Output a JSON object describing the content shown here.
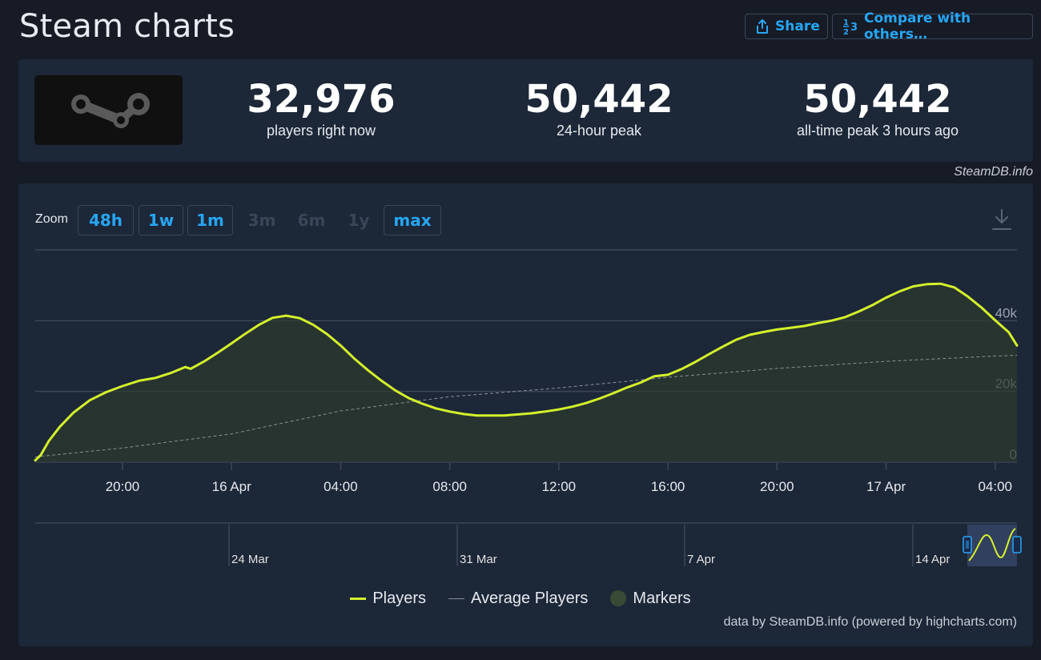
{
  "header": {
    "title": "Steam charts",
    "share_label": "Share",
    "compare_label": "Compare with others…"
  },
  "stats": [
    {
      "value": "32,976",
      "label": "players right now"
    },
    {
      "value": "50,442",
      "label": "24-hour peak"
    },
    {
      "value": "50,442",
      "label": "all-time peak 3 hours ago"
    }
  ],
  "credit_top": "SteamDB.info",
  "zoom": {
    "label": "Zoom",
    "buttons": [
      {
        "label": "48h",
        "enabled": true
      },
      {
        "label": "1w",
        "enabled": true
      },
      {
        "label": "1m",
        "enabled": true
      },
      {
        "label": "3m",
        "enabled": false
      },
      {
        "label": "6m",
        "enabled": false
      },
      {
        "label": "1y",
        "enabled": false
      },
      {
        "label": "max",
        "enabled": true
      }
    ]
  },
  "legend": {
    "players": "Players",
    "average": "Average Players",
    "markers": "Markers"
  },
  "footer_credit": "data by SteamDB.info (powered by highcharts.com)",
  "colors": {
    "players": "#d4f22b",
    "average": "#8a8f99",
    "markers": "#394a35",
    "accent": "#27a6f5"
  },
  "chart_data": {
    "type": "line",
    "x_unit": "hours since 15 Apr 16:00",
    "x_tick_labels": [
      "20:00",
      "16 Apr",
      "04:00",
      "08:00",
      "12:00",
      "16:00",
      "20:00",
      "17 Apr",
      "04:00"
    ],
    "x_tick_values": [
      4,
      8,
      12,
      16,
      20,
      24,
      28,
      32,
      36
    ],
    "xlim": [
      0.8,
      36.8
    ],
    "y_tick_labels": [
      "0",
      "20k",
      "40k"
    ],
    "y_tick_values": [
      0,
      20000,
      40000
    ],
    "ylim": [
      0,
      60000
    ],
    "grid": true,
    "legend_position": "bottom-center",
    "series": [
      {
        "name": "Players",
        "x": [
          0.8,
          1.0,
          1.3,
          1.7,
          2.2,
          2.8,
          3.4,
          4.0,
          4.6,
          5.2,
          5.8,
          6.3,
          6.5,
          7.0,
          7.5,
          8.0,
          8.5,
          9.0,
          9.5,
          10.0,
          10.5,
          11.0,
          11.5,
          12.0,
          12.5,
          13.0,
          13.5,
          14.0,
          14.5,
          15.0,
          15.5,
          16.0,
          16.5,
          17.0,
          17.5,
          18.0,
          18.5,
          19.0,
          19.5,
          20.0,
          20.5,
          21.0,
          21.5,
          22.0,
          22.5,
          23.0,
          23.5,
          24.0,
          24.5,
          25.0,
          25.5,
          26.0,
          26.5,
          27.0,
          27.5,
          28.0,
          28.5,
          29.0,
          29.5,
          30.0,
          30.5,
          31.0,
          31.5,
          32.0,
          32.5,
          33.0,
          33.5,
          34.0,
          34.5,
          35.0,
          35.5,
          36.0,
          36.5,
          36.8
        ],
        "y": [
          500,
          2000,
          6000,
          10000,
          14000,
          17500,
          19800,
          21500,
          23000,
          23800,
          25300,
          26900,
          26400,
          28500,
          31000,
          33600,
          36300,
          38800,
          40800,
          41400,
          40700,
          38800,
          36200,
          33000,
          29300,
          26000,
          23000,
          20300,
          18100,
          16500,
          15200,
          14300,
          13600,
          13200,
          13200,
          13200,
          13500,
          13800,
          14300,
          14900,
          15700,
          16700,
          18000,
          19500,
          21100,
          22500,
          24300,
          24700,
          26300,
          28300,
          30500,
          32600,
          34600,
          36000,
          36800,
          37500,
          38000,
          38500,
          39300,
          40000,
          41000,
          42600,
          44400,
          46500,
          48300,
          49700,
          50300,
          50442,
          49400,
          46800,
          43700,
          40100,
          36700,
          33000
        ]
      },
      {
        "name": "Average Players",
        "x": [
          0.8,
          4.0,
          8.0,
          12.0,
          16.0,
          20.0,
          24.0,
          28.0,
          32.0,
          36.0,
          36.8
        ],
        "y": [
          1500,
          4000,
          8000,
          14500,
          18500,
          21000,
          24000,
          26500,
          28500,
          30000,
          30200
        ]
      }
    ]
  },
  "navigator_data": {
    "x_tick_labels": [
      "24 Mar",
      "31 Mar",
      "7 Apr",
      "14 Apr"
    ]
  }
}
